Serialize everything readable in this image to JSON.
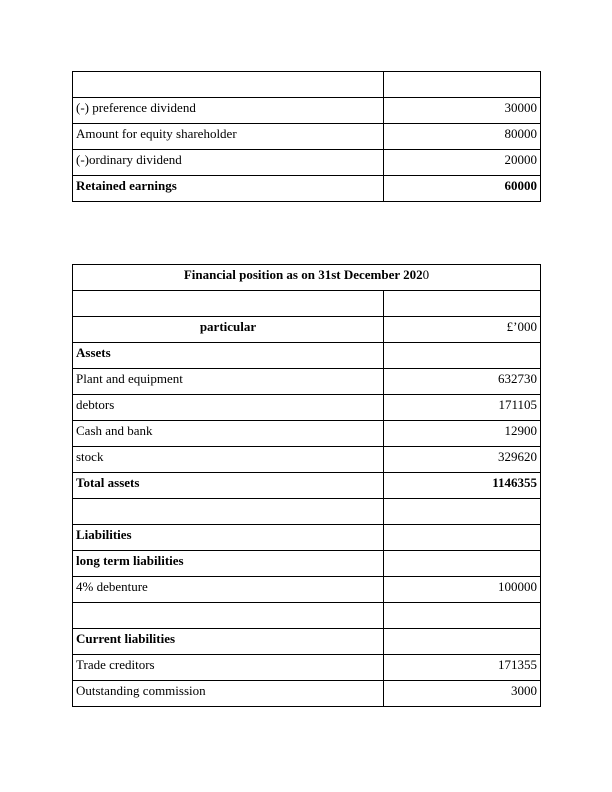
{
  "page": {
    "background_color": "#ffffff",
    "text_color": "#000000"
  },
  "dividend_table": {
    "rows": [
      {
        "particular": "",
        "amount": ""
      },
      {
        "particular": "(-) preference dividend",
        "amount": "30000"
      },
      {
        "particular": "Amount for equity shareholder",
        "amount": "80000"
      },
      {
        "particular": "(-)ordinary dividend",
        "amount": "20000"
      },
      {
        "particular": "Retained earnings",
        "amount": "60000"
      }
    ]
  },
  "financial_position_table": {
    "title_bold_part": "Financial position as on 31st December 202",
    "title_regular_part": "0",
    "spacer": "",
    "header": {
      "particular": "particular",
      "amount": "£’000"
    },
    "rows": [
      {
        "particular": "Assets",
        "amount": ""
      },
      {
        "particular": "Plant and equipment",
        "amount": "632730"
      },
      {
        "particular": "debtors",
        "amount": "171105"
      },
      {
        "particular": "Cash and bank",
        "amount": "12900"
      },
      {
        "particular": "stock",
        "amount": "329620"
      },
      {
        "particular": "Total assets",
        "amount": "1146355"
      },
      {
        "particular": "",
        "amount": ""
      },
      {
        "particular": "Liabilities",
        "amount": ""
      },
      {
        "particular": "long term liabilities",
        "amount": ""
      },
      {
        "particular": "4% debenture",
        "amount": "100000"
      },
      {
        "particular": "",
        "amount": ""
      },
      {
        "particular": "Current liabilities",
        "amount": ""
      },
      {
        "particular": "Trade creditors",
        "amount": "171355"
      },
      {
        "particular": "Outstanding commission",
        "amount": "3000"
      }
    ]
  }
}
